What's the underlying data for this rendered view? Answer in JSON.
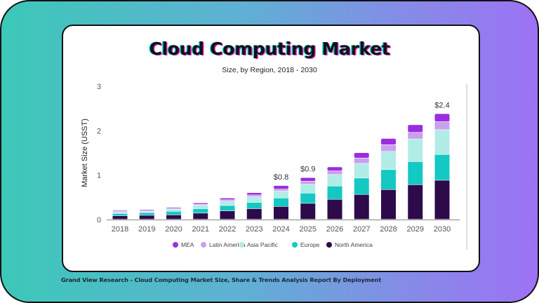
{
  "title": "Cloud Computing Market",
  "subtitle": "Size, by Region, 2018 - 2030",
  "footer": "Grand View Research - Cloud Computing Market Size, Share & Trends Analysis Report By Deployment",
  "chart_data": {
    "type": "bar",
    "stacked": true,
    "title": "Cloud Computing Market",
    "subtitle": "Size, by Region, 2018 - 2030",
    "xlabel": "",
    "ylabel": "Market Size (USST)",
    "ylim": [
      0,
      3
    ],
    "yticks": [
      "0",
      "1",
      "2",
      "3"
    ],
    "grid": false,
    "legend_position": "bottom",
    "categories": [
      "2018",
      "2019",
      "2020",
      "2021",
      "2022",
      "2023",
      "2024",
      "2025",
      "2026",
      "2027",
      "2028",
      "2029",
      "2030"
    ],
    "series": [
      {
        "name": "North America",
        "color": "#2d0a4a",
        "values": [
          0.08,
          0.09,
          0.1,
          0.14,
          0.19,
          0.24,
          0.29,
          0.36,
          0.45,
          0.56,
          0.67,
          0.78,
          0.88
        ]
      },
      {
        "name": "Europe",
        "color": "#14c8c4",
        "values": [
          0.05,
          0.06,
          0.08,
          0.1,
          0.12,
          0.14,
          0.19,
          0.23,
          0.3,
          0.37,
          0.45,
          0.52,
          0.58
        ]
      },
      {
        "name": "Asia Pacific",
        "color": "#b2ece6",
        "values": [
          0.04,
          0.03,
          0.05,
          0.08,
          0.1,
          0.13,
          0.16,
          0.2,
          0.26,
          0.33,
          0.41,
          0.51,
          0.56
        ]
      },
      {
        "name": "Latin America",
        "color": "#c9a0ec",
        "values": [
          0.01,
          0.02,
          0.02,
          0.02,
          0.03,
          0.04,
          0.04,
          0.07,
          0.08,
          0.12,
          0.15,
          0.15,
          0.18
        ]
      },
      {
        "name": "MEA",
        "color": "#9b2de0",
        "values": [
          0.02,
          0.02,
          0.02,
          0.03,
          0.04,
          0.05,
          0.08,
          0.08,
          0.09,
          0.12,
          0.14,
          0.17,
          0.18
        ]
      }
    ],
    "legend_order": [
      "MEA",
      "Latin America",
      "Asia Pacific",
      "Europe",
      "North America"
    ],
    "data_labels": [
      {
        "category": "2024",
        "text": "$0.8"
      },
      {
        "category": "2025",
        "text": "$0.9"
      },
      {
        "category": "2030",
        "text": "$2.4"
      }
    ]
  }
}
